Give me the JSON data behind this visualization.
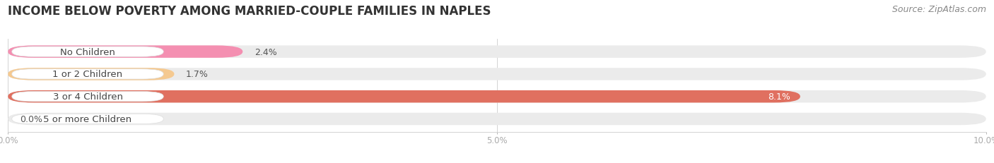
{
  "title": "INCOME BELOW POVERTY AMONG MARRIED-COUPLE FAMILIES IN NAPLES",
  "source": "Source: ZipAtlas.com",
  "categories": [
    "No Children",
    "1 or 2 Children",
    "3 or 4 Children",
    "5 or more Children"
  ],
  "values": [
    2.4,
    1.7,
    8.1,
    0.0
  ],
  "bar_colors": [
    "#f48fb1",
    "#f5c990",
    "#e07060",
    "#a8c4e0"
  ],
  "xlim": [
    0,
    10.0
  ],
  "xticks": [
    0.0,
    5.0,
    10.0
  ],
  "xtick_labels": [
    "0.0%",
    "5.0%",
    "10.0%"
  ],
  "background_color": "#ffffff",
  "bar_background": "#ebebeb",
  "title_fontsize": 12,
  "source_fontsize": 9,
  "label_fontsize": 9.5,
  "value_fontsize": 9
}
